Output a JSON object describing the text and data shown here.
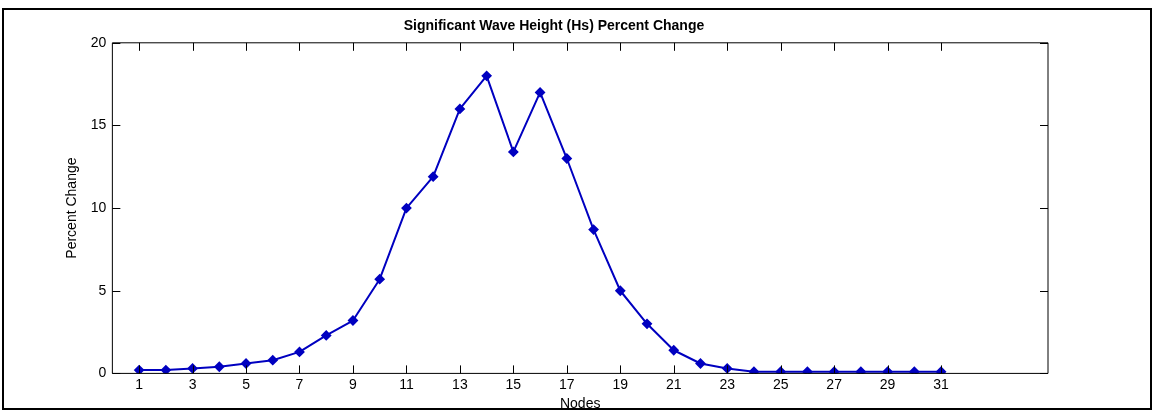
{
  "chart_data": {
    "type": "line",
    "title": "Significant Wave Height (Hs) Percent Change",
    "xlabel": "Nodes",
    "ylabel": "Percent Change",
    "x": [
      1,
      2,
      3,
      4,
      5,
      6,
      7,
      8,
      9,
      10,
      11,
      12,
      13,
      14,
      15,
      16,
      17,
      18,
      19,
      20,
      21,
      22,
      23,
      24,
      25,
      26,
      27,
      28,
      29,
      30,
      31
    ],
    "series": [
      {
        "color": "#0000c0",
        "values": [
          0.2,
          0.2,
          0.3,
          0.4,
          0.6,
          0.8,
          1.3,
          2.3,
          3.2,
          5.7,
          10,
          11.9,
          16,
          18,
          13.4,
          17,
          13,
          8.7,
          5,
          3,
          1.4,
          0.6,
          0.3,
          0.1,
          0.1,
          0.1,
          0.1,
          0.1,
          0.1,
          0.1,
          0.1
        ]
      }
    ],
    "xlim": [
      0,
      35
    ],
    "xticks": [
      1,
      3,
      5,
      7,
      9,
      11,
      13,
      15,
      17,
      19,
      21,
      23,
      25,
      27,
      29,
      31
    ],
    "ylim": [
      0,
      20
    ],
    "yticks": [
      0,
      5,
      10,
      15,
      20
    ],
    "grid": false,
    "legend": false,
    "marker": "diamond",
    "line_style": "solid"
  }
}
